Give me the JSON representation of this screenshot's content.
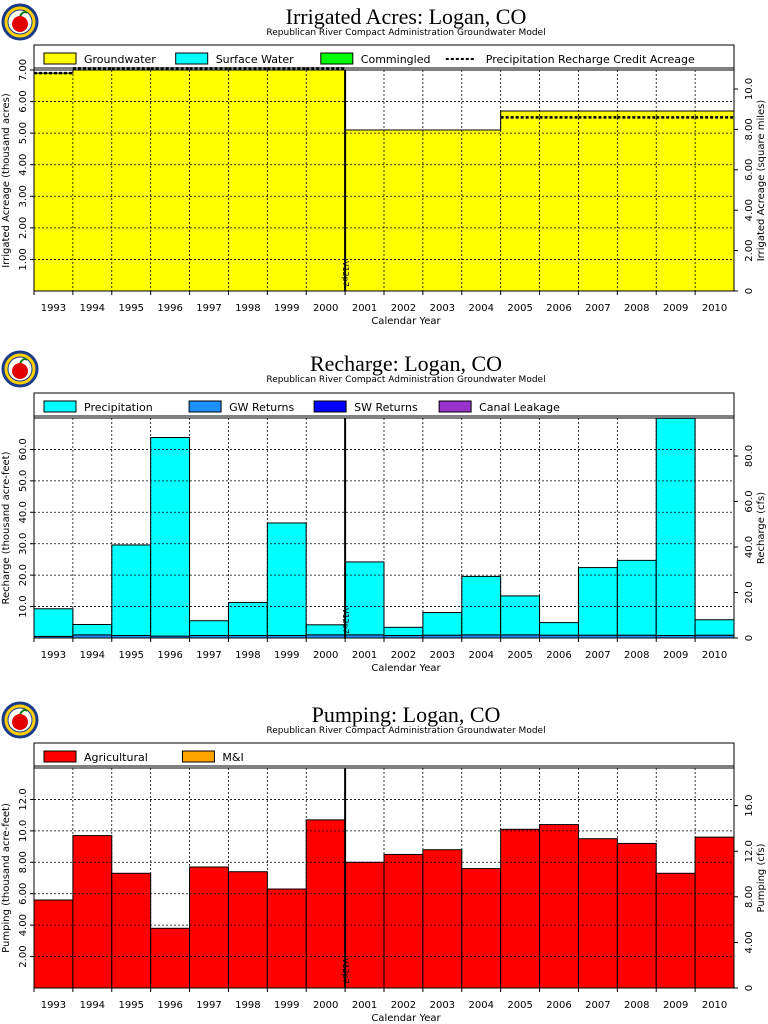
{
  "logo_color": "#e00000",
  "chart_data": [
    {
      "type": "area",
      "title": "Irrigated Acres: Logan, CO",
      "subtitle": "Republican River Compact Administration Groundwater Model",
      "xlabel": "Calendar Year",
      "ylabel": "Irrigated Acreage (thousand acres)",
      "ylabel_right": "Irrigated Acreage (square miles)",
      "ylim": [
        0,
        7.0
      ],
      "ylim_right": [
        0,
        10.94
      ],
      "yticks": [
        "1.00",
        "2.00",
        "3.00",
        "4.00",
        "5.00",
        "6.00",
        "7.00"
      ],
      "yticks_right": [
        "0",
        "2.00",
        "4.00",
        "6.00",
        "8.00",
        "10.0"
      ],
      "categories": [
        "1993",
        "1994",
        "1995",
        "1996",
        "1997",
        "1998",
        "1999",
        "2000",
        "2001",
        "2002",
        "2003",
        "2004",
        "2005",
        "2006",
        "2007",
        "2008",
        "2009",
        "2010"
      ],
      "annotation": "V12p7",
      "annotation_after": "2000",
      "legend": [
        "Groundwater",
        "Surface Water",
        "Commingled",
        "Precipitation Recharge Credit Acreage"
      ],
      "colors": {
        "Groundwater": "#ffff00",
        "Surface Water": "#00ffff",
        "Commingled": "#00ff00",
        "Precipitation Recharge Credit Acreage": "#000000"
      },
      "series": [
        {
          "name": "Groundwater",
          "values": [
            6.9,
            7.0,
            7.0,
            7.0,
            7.0,
            7.0,
            7.0,
            7.0,
            5.1,
            5.1,
            5.1,
            5.1,
            5.7,
            5.7,
            5.7,
            5.7,
            5.7,
            5.7
          ]
        },
        {
          "name": "Surface Water",
          "values": [
            0,
            0,
            0,
            0,
            0,
            0,
            0,
            0,
            0,
            0,
            0,
            0,
            0,
            0,
            0,
            0,
            0,
            0
          ]
        },
        {
          "name": "Commingled",
          "values": [
            0,
            0,
            0,
            0,
            0,
            0,
            0,
            0,
            0,
            0,
            0,
            0,
            0,
            0,
            0,
            0,
            0,
            0
          ]
        },
        {
          "name": "Precipitation Recharge Credit Acreage",
          "values": [
            6.9,
            7.05,
            7.05,
            7.05,
            7.05,
            7.05,
            7.05,
            7.05,
            null,
            null,
            null,
            null,
            5.5,
            5.5,
            5.5,
            5.5,
            5.5,
            5.5
          ]
        }
      ]
    },
    {
      "type": "bar",
      "title": "Recharge: Logan, CO",
      "subtitle": "Republican River Compact Administration Groundwater Model",
      "xlabel": "Calendar Year",
      "ylabel": "Recharge (thousand acre-feet)",
      "ylabel_right": "Recharge (cfs)",
      "ylim": [
        0,
        70
      ],
      "ylim_right": [
        0,
        96.7
      ],
      "yticks": [
        "10.0",
        "20.0",
        "30.0",
        "40.0",
        "50.0",
        "60.0"
      ],
      "yticks_right": [
        "0",
        "20.0",
        "40.0",
        "60.0",
        "80.0"
      ],
      "categories": [
        "1993",
        "1994",
        "1995",
        "1996",
        "1997",
        "1998",
        "1999",
        "2000",
        "2001",
        "2002",
        "2003",
        "2004",
        "2005",
        "2006",
        "2007",
        "2008",
        "2009",
        "2010"
      ],
      "annotation": "V12p7",
      "annotation_after": "2000",
      "legend": [
        "Precipitation",
        "GW Returns",
        "SW Returns",
        "Canal Leakage"
      ],
      "colors": {
        "Precipitation": "#00ffff",
        "GW Returns": "#1e90ff",
        "SW Returns": "#0000ff",
        "Canal Leakage": "#9932cc"
      },
      "series": [
        {
          "name": "GW Returns",
          "values": [
            0.5,
            1.0,
            0.8,
            0.6,
            0.8,
            0.8,
            0.8,
            1.0,
            1.0,
            0.8,
            0.9,
            1.0,
            1.0,
            0.9,
            0.9,
            0.9,
            0.8,
            0.9
          ]
        },
        {
          "name": "Precipitation",
          "values": [
            8.8,
            3.3,
            28.8,
            63.2,
            4.7,
            10.5,
            35.8,
            3.2,
            23.2,
            2.6,
            7.2,
            18.6,
            12.4,
            4.0,
            21.5,
            23.8,
            69.1,
            4.9
          ]
        },
        {
          "name": "SW Returns",
          "values": [
            0,
            0,
            0,
            0,
            0,
            0,
            0,
            0,
            0,
            0,
            0,
            0,
            0,
            0,
            0,
            0,
            0,
            0
          ]
        },
        {
          "name": "Canal Leakage",
          "values": [
            0,
            0,
            0,
            0,
            0,
            0,
            0,
            0,
            0,
            0,
            0,
            0,
            0,
            0,
            0,
            0,
            0,
            0
          ]
        }
      ]
    },
    {
      "type": "bar",
      "title": "Pumping: Logan, CO",
      "subtitle": "Republican River Compact Administration Groundwater Model",
      "xlabel": "Calendar Year",
      "ylabel": "Pumping (thousand acre-feet)",
      "ylabel_right": "Pumping (cfs)",
      "ylim": [
        0,
        14
      ],
      "ylim_right": [
        0,
        19.3
      ],
      "yticks": [
        "2.00",
        "4.00",
        "6.00",
        "8.00",
        "10.0",
        "12.0"
      ],
      "yticks_right": [
        "0",
        "4.00",
        "8.00",
        "12.0",
        "16.0"
      ],
      "categories": [
        "1993",
        "1994",
        "1995",
        "1996",
        "1997",
        "1998",
        "1999",
        "2000",
        "2001",
        "2002",
        "2003",
        "2004",
        "2005",
        "2006",
        "2007",
        "2008",
        "2009",
        "2010"
      ],
      "annotation": "V12p7",
      "annotation_after": "2000",
      "legend": [
        "Agricultural",
        "M&I"
      ],
      "colors": {
        "Agricultural": "#ff0000",
        "M&I": "#ffa500"
      },
      "series": [
        {
          "name": "Agricultural",
          "values": [
            5.6,
            9.7,
            7.3,
            3.8,
            7.7,
            7.4,
            6.3,
            10.7,
            8.0,
            8.5,
            8.8,
            7.6,
            10.1,
            10.4,
            9.5,
            9.2,
            7.3,
            9.6
          ]
        },
        {
          "name": "M&I",
          "values": [
            0,
            0,
            0,
            0,
            0,
            0,
            0,
            0,
            0,
            0,
            0,
            0,
            0,
            0,
            0,
            0,
            0,
            0
          ]
        }
      ]
    }
  ]
}
